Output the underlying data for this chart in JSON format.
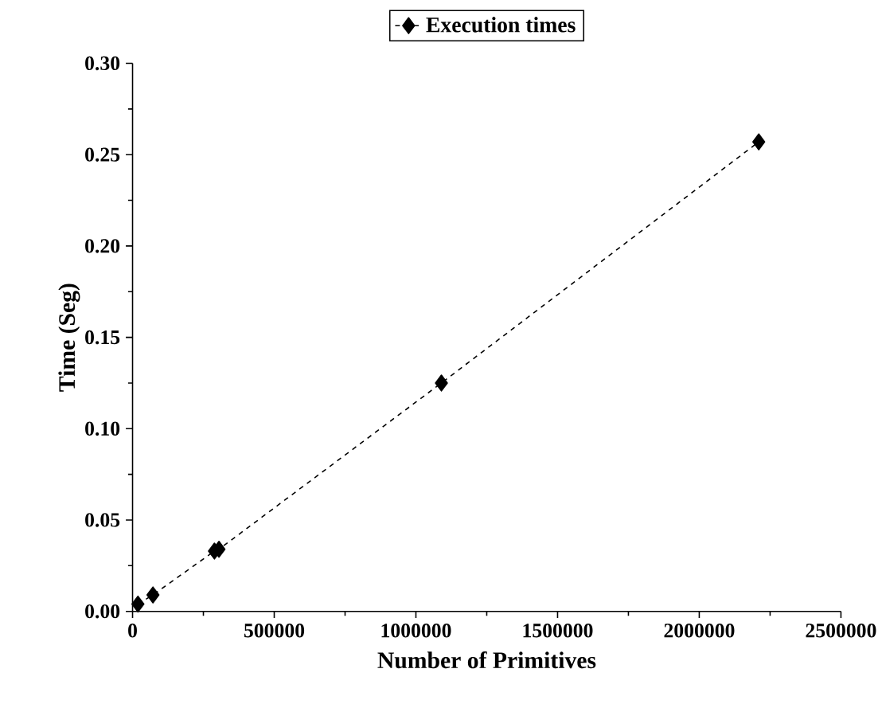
{
  "chart_data": {
    "type": "line",
    "xlabel": "Number of Primitives",
    "ylabel": "Time (Seg)",
    "x": [
      19000,
      72000,
      289000,
      305000,
      1090000,
      2210000
    ],
    "series": [
      {
        "name": "Execution times",
        "color": "#000000",
        "values": [
          0.004,
          0.009,
          0.033,
          0.034,
          0.125,
          0.257
        ]
      }
    ],
    "xlim": [
      0,
      2500000
    ],
    "xticks": [
      0,
      500000,
      1000000,
      1500000,
      2000000,
      2500000
    ],
    "ylim": [
      0,
      0.3
    ],
    "yticks": [
      {
        "value": 0,
        "label": "0.00"
      },
      {
        "value": 0.05,
        "label": "0.05"
      },
      {
        "value": 0.1,
        "label": "0.10"
      },
      {
        "value": 0.15,
        "label": "0.15"
      },
      {
        "value": 0.2,
        "label": "0.20"
      },
      {
        "value": 0.25,
        "label": "0.25"
      },
      {
        "value": 0.3,
        "label": "0.30"
      }
    ],
    "grid": false,
    "legend": "top",
    "marker": "diamond",
    "line_style": "dashed"
  }
}
